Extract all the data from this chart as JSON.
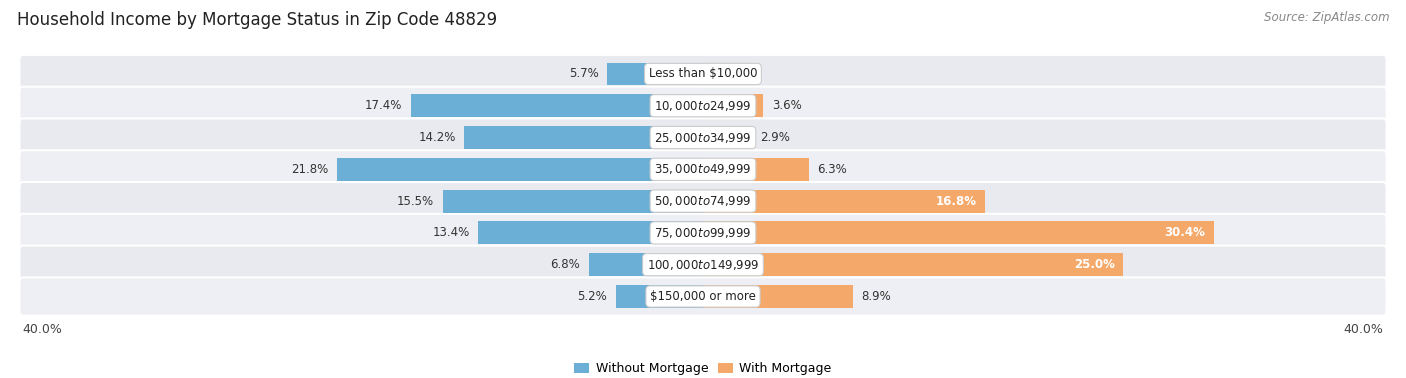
{
  "title": "Household Income by Mortgage Status in Zip Code 48829",
  "source": "Source: ZipAtlas.com",
  "categories": [
    "Less than $10,000",
    "$10,000 to $24,999",
    "$25,000 to $34,999",
    "$35,000 to $49,999",
    "$50,000 to $74,999",
    "$75,000 to $99,999",
    "$100,000 to $149,999",
    "$150,000 or more"
  ],
  "without_mortgage": [
    5.7,
    17.4,
    14.2,
    21.8,
    15.5,
    13.4,
    6.8,
    5.2
  ],
  "with_mortgage": [
    0.0,
    3.6,
    2.9,
    6.3,
    16.8,
    30.4,
    25.0,
    8.9
  ],
  "color_without": "#6baed6",
  "color_with": "#f4a86a",
  "row_bg_even": "#e8eaf0",
  "row_bg_odd": "#eeeff4",
  "xlim": 40.0,
  "legend_label_without": "Without Mortgage",
  "legend_label_with": "With Mortgage",
  "axis_label": "40.0%",
  "title_fontsize": 12,
  "source_fontsize": 8.5,
  "bar_label_fontsize": 8.5,
  "category_fontsize": 8.5
}
